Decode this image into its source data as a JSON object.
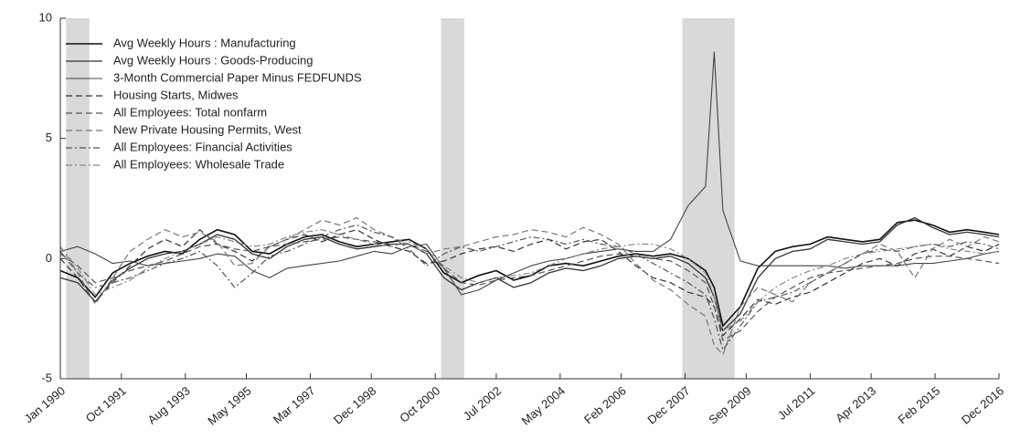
{
  "chart_data": {
    "type": "line",
    "x": [
      "Jan 1990",
      "Jul 1990",
      "Jan 1991",
      "Jul 1991",
      "Jan 1992",
      "Jul 1992",
      "Jan 1993",
      "Jul 1993",
      "Jan 1994",
      "Jul 1994",
      "Jan 1995",
      "Jul 1995",
      "Jan 1996",
      "Jul 1996",
      "Jan 1997",
      "Jul 1997",
      "Jan 1998",
      "Jul 1998",
      "Jan 1999",
      "Jul 1999",
      "Jan 2000",
      "Jul 2000",
      "Jan 2001",
      "Jul 2001",
      "Jan 2002",
      "Jul 2002",
      "Jan 2003",
      "Jul 2003",
      "Jan 2004",
      "Jul 2004",
      "Jan 2005",
      "Jul 2005",
      "Jan 2006",
      "Jul 2006",
      "Jan 2007",
      "Jul 2007",
      "Jan 2008",
      "Jul 2008",
      "Oct 2008",
      "Jan 2009",
      "Jul 2009",
      "Jan 2010",
      "Jul 2010",
      "Jan 2011",
      "Jul 2011",
      "Jan 2012",
      "Jul 2012",
      "Jan 2013",
      "Jul 2013",
      "Jan 2014",
      "Jul 2014",
      "Jan 2015",
      "Jul 2015",
      "Jan 2016",
      "Jul 2016",
      "Dec 2016"
    ],
    "xlim": [
      "Jan 1990",
      "Dec 2016"
    ],
    "xticks": [
      "Jan 1990",
      "Oct 1991",
      "Aug 1993",
      "May 1995",
      "Mar 1997",
      "Dec 1998",
      "Oct 2000",
      "Jul 2002",
      "May 2004",
      "Feb 2006",
      "Dec 2007",
      "Sep 2009",
      "Jul 2011",
      "Apr 2013",
      "Feb 2015",
      "Dec 2016"
    ],
    "ylim": [
      -5,
      10
    ],
    "yticks": [
      -5,
      0,
      5,
      10
    ],
    "legend": "upper-left",
    "shaded_periods": [
      {
        "start": "Mar 1990",
        "end": "Nov 1990"
      },
      {
        "start": "Dec 2000",
        "end": "Aug 2001"
      },
      {
        "start": "Nov 2007",
        "end": "May 2009"
      }
    ],
    "shade_color": "#d9d9d9",
    "series": [
      {
        "name": "Avg Weekly Hours : Manufacturing",
        "color": "#111111",
        "dash": "solid",
        "width": 1.6,
        "values": [
          -0.5,
          -0.8,
          -1.6,
          -0.6,
          -0.2,
          0.1,
          0.3,
          0.2,
          0.8,
          1.2,
          1.0,
          0.3,
          0.2,
          0.6,
          0.9,
          1.0,
          0.7,
          0.5,
          0.6,
          0.7,
          0.8,
          0.4,
          -0.6,
          -1.0,
          -0.7,
          -0.5,
          -0.9,
          -0.7,
          -0.3,
          -0.2,
          -0.3,
          -0.1,
          0.1,
          0.2,
          0.1,
          0.2,
          0.0,
          -0.5,
          -1.2,
          -2.8,
          -2.0,
          -0.4,
          0.3,
          0.5,
          0.6,
          0.9,
          0.8,
          0.7,
          0.8,
          1.5,
          1.6,
          1.4,
          1.1,
          1.2,
          1.1,
          1.0
        ]
      },
      {
        "name": "Avg Weekly Hours : Goods-Producing",
        "color": "#333333",
        "dash": "solid",
        "width": 1.3,
        "values": [
          -0.8,
          -1.0,
          -1.8,
          -0.9,
          -0.4,
          0.0,
          0.2,
          0.3,
          0.6,
          1.0,
          0.8,
          0.2,
          0.0,
          0.5,
          0.8,
          0.9,
          0.6,
          0.4,
          0.5,
          0.6,
          0.6,
          0.2,
          -0.8,
          -1.3,
          -1.0,
          -0.8,
          -1.2,
          -1.0,
          -0.6,
          -0.4,
          -0.5,
          -0.3,
          0.0,
          0.1,
          0.0,
          0.1,
          -0.2,
          -0.8,
          -1.6,
          -3.0,
          -2.3,
          -0.8,
          0.0,
          0.3,
          0.4,
          0.8,
          0.7,
          0.6,
          0.7,
          1.4,
          1.7,
          1.3,
          1.0,
          1.1,
          1.0,
          0.9
        ]
      },
      {
        "name": "3-Month Commercial Paper Minus FEDFUNDS",
        "color": "#444444",
        "dash": "solid",
        "width": 1.1,
        "values": [
          0.3,
          0.5,
          0.2,
          -0.2,
          -0.1,
          -0.3,
          -0.2,
          -0.1,
          0.0,
          0.2,
          0.1,
          -0.5,
          -0.8,
          -0.4,
          -0.3,
          -0.2,
          -0.1,
          0.1,
          0.3,
          0.2,
          0.5,
          0.6,
          -0.4,
          -1.5,
          -1.3,
          -0.9,
          -0.6,
          -0.3,
          -0.1,
          0.0,
          0.2,
          0.3,
          0.4,
          0.3,
          0.3,
          0.8,
          2.2,
          3.0,
          8.6,
          2.0,
          -0.1,
          -0.3,
          -0.3,
          -0.3,
          -0.3,
          -0.3,
          -0.4,
          -0.3,
          -0.3,
          -0.3,
          -0.2,
          -0.2,
          -0.1,
          0.0,
          0.2,
          0.3
        ]
      },
      {
        "name": "Housing Starts, Midwes",
        "color": "#333333",
        "dash": "dashed",
        "width": 1.2,
        "values": [
          0.0,
          -0.8,
          -1.8,
          -1.0,
          -0.3,
          0.4,
          0.8,
          0.5,
          1.2,
          0.6,
          0.3,
          -0.1,
          0.5,
          0.8,
          1.0,
          0.7,
          1.0,
          1.2,
          0.8,
          0.5,
          0.3,
          -0.2,
          -0.1,
          0.2,
          0.4,
          0.5,
          0.3,
          0.6,
          0.8,
          0.4,
          0.7,
          0.8,
          0.3,
          -0.3,
          -0.8,
          -1.0,
          -1.4,
          -1.6,
          -2.0,
          -3.2,
          -2.5,
          -1.7,
          -1.9,
          -1.6,
          -1.4,
          -1.0,
          -0.6,
          -0.2,
          0.0,
          -0.3,
          0.2,
          0.4,
          0.1,
          0.5,
          0.3,
          0.6
        ]
      },
      {
        "name": "All Employees: Total nonfarm",
        "color": "#555555",
        "dash": "dashed",
        "width": 1.2,
        "values": [
          0.2,
          -0.3,
          -1.0,
          -0.8,
          -0.5,
          -0.3,
          -0.1,
          0.2,
          0.5,
          0.6,
          0.4,
          0.3,
          0.5,
          0.6,
          0.7,
          0.8,
          0.9,
          0.8,
          0.7,
          0.6,
          0.6,
          0.3,
          -0.4,
          -1.0,
          -1.1,
          -0.9,
          -0.8,
          -0.7,
          -0.5,
          -0.3,
          -0.1,
          0.1,
          0.2,
          0.1,
          0.0,
          -0.1,
          -0.5,
          -1.0,
          -2.0,
          -3.4,
          -3.0,
          -2.2,
          -1.6,
          -1.2,
          -0.8,
          -0.6,
          -0.5,
          -0.4,
          -0.3,
          -0.2,
          0.0,
          0.1,
          0.1,
          0.0,
          -0.1,
          -0.2
        ]
      },
      {
        "name": "New Private Housing Permits, West",
        "color": "#777777",
        "dash": "dashed",
        "width": 1.2,
        "values": [
          0.5,
          -0.6,
          -1.9,
          -0.8,
          0.3,
          0.8,
          1.2,
          0.9,
          1.1,
          0.7,
          -0.3,
          -0.2,
          0.5,
          0.8,
          1.2,
          1.6,
          1.4,
          1.7,
          1.2,
          0.9,
          0.6,
          0.2,
          0.4,
          0.5,
          0.7,
          0.9,
          1.0,
          1.2,
          1.1,
          0.9,
          1.3,
          1.0,
          0.6,
          -0.2,
          -0.9,
          -1.3,
          -1.9,
          -2.4,
          -3.6,
          -4.0,
          -2.0,
          -1.2,
          -1.5,
          -1.8,
          -1.0,
          -0.6,
          -0.2,
          0.2,
          0.6,
          0.3,
          -0.8,
          0.4,
          0.8,
          0.5,
          0.9,
          0.7
        ]
      },
      {
        "name": "All Employees: Financial Activities",
        "color": "#555555",
        "dash": "dashdot",
        "width": 1.2,
        "values": [
          0.3,
          -0.6,
          -1.2,
          -1.0,
          -0.8,
          -0.5,
          -0.2,
          0.0,
          0.3,
          -0.3,
          -1.2,
          -0.6,
          0.1,
          0.3,
          0.6,
          0.9,
          1.2,
          1.4,
          1.1,
          0.9,
          0.4,
          -0.3,
          0.2,
          0.5,
          0.3,
          0.5,
          0.7,
          0.9,
          0.8,
          0.6,
          0.8,
          0.6,
          0.5,
          0.2,
          -0.2,
          -0.6,
          -1.0,
          -1.5,
          -2.5,
          -3.8,
          -2.8,
          -1.8,
          -1.6,
          -1.4,
          -1.0,
          -0.6,
          -0.2,
          0.2,
          0.4,
          0.3,
          0.5,
          0.6,
          0.5,
          0.7,
          0.6,
          0.4
        ]
      },
      {
        "name": "All Employees: Wholesale Trade",
        "color": "#888888",
        "dash": "dashdot",
        "width": 1.2,
        "values": [
          0.5,
          -0.4,
          -1.5,
          -1.2,
          -0.9,
          -0.4,
          0.0,
          0.3,
          0.6,
          0.9,
          0.7,
          0.5,
          0.6,
          0.9,
          1.1,
          1.2,
          1.0,
          0.8,
          0.6,
          0.5,
          0.7,
          0.4,
          -0.3,
          -0.8,
          -1.0,
          -0.8,
          -0.7,
          -0.6,
          -0.3,
          0.0,
          0.2,
          0.4,
          0.5,
          0.6,
          0.6,
          0.4,
          0.0,
          -0.6,
          -1.6,
          -3.0,
          -2.6,
          -1.8,
          -1.2,
          -0.8,
          -0.5,
          -0.3,
          0.0,
          0.2,
          0.3,
          0.4,
          0.5,
          0.6,
          0.4,
          0.3,
          0.2,
          0.3
        ]
      }
    ]
  }
}
